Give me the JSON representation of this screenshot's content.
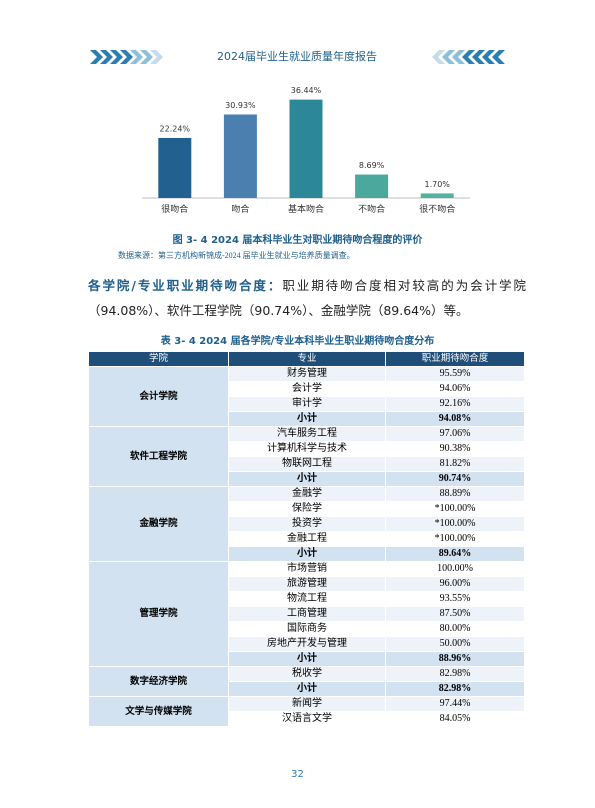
{
  "header": {
    "title": "2024届毕业生就业质量年度报告"
  },
  "chart_data": {
    "type": "bar",
    "categories": [
      "很吻合",
      "吻合",
      "基本吻合",
      "不吻合",
      "很不吻合"
    ],
    "values": [
      22.24,
      30.93,
      36.44,
      8.69,
      1.7
    ],
    "value_labels": [
      "22.24%",
      "30.93%",
      "36.44%",
      "8.69%",
      "1.70%"
    ],
    "colors": [
      "#21608f",
      "#4a7fb0",
      "#2c8799",
      "#4aa89c",
      "#52b3a0"
    ]
  },
  "figure_caption": "图 3- 4  2024 届本科毕业生对职业期待吻合程度的评价",
  "source": "数据来源：第三方机构新锦成-2024 届毕业生就业与培养质量调查。",
  "paragraph": {
    "lead": "各学院/专业职业期待吻合度：",
    "text": "职业期待吻合度相对较高的为会计学院（94.08%）、软件工程学院（90.74%）、金融学院（89.64%）等。"
  },
  "table_caption": "表 3- 4  2024 届各学院/专业本科毕业生职业期待吻合度分布",
  "table": {
    "headers": [
      "学院",
      "专业",
      "职业期待吻合度"
    ],
    "groups": [
      {
        "college": "会计学院",
        "rows": [
          [
            "财务管理",
            "95.59%"
          ],
          [
            "会计学",
            "94.06%"
          ],
          [
            "审计学",
            "92.16%"
          ],
          [
            "小计",
            "94.08%"
          ]
        ]
      },
      {
        "college": "软件工程学院",
        "rows": [
          [
            "汽车服务工程",
            "97.06%"
          ],
          [
            "计算机科学与技术",
            "90.38%"
          ],
          [
            "物联网工程",
            "81.82%"
          ],
          [
            "小计",
            "90.74%"
          ]
        ]
      },
      {
        "college": "金融学院",
        "rows": [
          [
            "金融学",
            "88.89%"
          ],
          [
            "保险学",
            "*100.00%"
          ],
          [
            "投资学",
            "*100.00%"
          ],
          [
            "金融工程",
            "*100.00%"
          ],
          [
            "小计",
            "89.64%"
          ]
        ]
      },
      {
        "college": "管理学院",
        "rows": [
          [
            "市场营销",
            "100.00%"
          ],
          [
            "旅游管理",
            "96.00%"
          ],
          [
            "物流工程",
            "93.55%"
          ],
          [
            "工商管理",
            "87.50%"
          ],
          [
            "国际商务",
            "80.00%"
          ],
          [
            "房地产开发与管理",
            "50.00%"
          ],
          [
            "小计",
            "88.96%"
          ]
        ]
      },
      {
        "college": "数字经济学院",
        "rows": [
          [
            "税收学",
            "82.98%"
          ],
          [
            "小计",
            "82.98%"
          ]
        ]
      },
      {
        "college": "文学与传媒学院",
        "rows": [
          [
            "新闻学",
            "97.44%"
          ],
          [
            "汉语言文学",
            "84.05%"
          ]
        ]
      }
    ]
  },
  "page_number": "32"
}
